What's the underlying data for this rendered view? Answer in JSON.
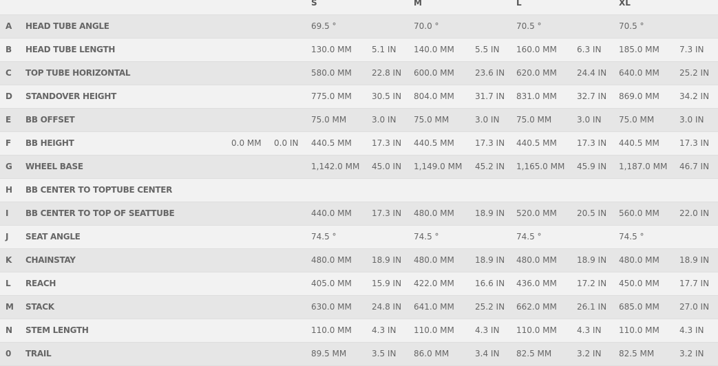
{
  "sizes": [
    "S",
    "M",
    "L",
    "XL"
  ],
  "rows": [
    {
      "letter": "A",
      "label": "HEAD TUBE ANGLE",
      "values": [
        [
          "69.5 °",
          ""
        ],
        [
          "70.0 °",
          ""
        ],
        [
          "70.5 °",
          ""
        ],
        [
          "70.5 °",
          ""
        ]
      ]
    },
    {
      "letter": "B",
      "label": "HEAD TUBE LENGTH",
      "values": [
        [
          "130.0 MM",
          "5.1 IN"
        ],
        [
          "140.0 MM",
          "5.5 IN"
        ],
        [
          "160.0 MM",
          "6.3 IN"
        ],
        [
          "185.0 MM",
          "7.3 IN"
        ]
      ]
    },
    {
      "letter": "C",
      "label": "TOP TUBE HORIZONTAL",
      "values": [
        [
          "580.0 MM",
          "22.8 IN"
        ],
        [
          "600.0 MM",
          "23.6 IN"
        ],
        [
          "620.0 MM",
          "24.4 IN"
        ],
        [
          "640.0 MM",
          "25.2 IN"
        ]
      ]
    },
    {
      "letter": "D",
      "label": "STANDOVER HEIGHT",
      "values": [
        [
          "775.0 MM",
          "30.5 IN"
        ],
        [
          "804.0 MM",
          "31.7 IN"
        ],
        [
          "831.0 MM",
          "32.7 IN"
        ],
        [
          "869.0 MM",
          "34.2 IN"
        ]
      ]
    },
    {
      "letter": "E",
      "label": "BB OFFSET",
      "values": [
        [
          "75.0 MM",
          "3.0 IN"
        ],
        [
          "75.0 MM",
          "3.0 IN"
        ],
        [
          "75.0 MM",
          "3.0 IN"
        ],
        [
          "75.0 MM",
          "3.0 IN"
        ]
      ]
    },
    {
      "letter": "F",
      "label": "BB HEIGHT",
      "extra": [
        "0.0 MM",
        "0.0 IN"
      ],
      "values": [
        [
          "440.5 MM",
          "17.3 IN"
        ],
        [
          "440.5 MM",
          "17.3 IN"
        ],
        [
          "440.5 MM",
          "17.3 IN"
        ],
        [
          "440.5 MM",
          "17.3 IN"
        ]
      ]
    },
    {
      "letter": "G",
      "label": "WHEEL BASE",
      "values": [
        [
          "1,142.0 MM",
          "45.0 IN"
        ],
        [
          "1,149.0 MM",
          "45.2 IN"
        ],
        [
          "1,165.0 MM",
          "45.9 IN"
        ],
        [
          "1,187.0 MM",
          "46.7 IN"
        ]
      ]
    },
    {
      "letter": "H",
      "label": "BB CENTER TO TOPTUBE CENTER",
      "values": [
        [
          "",
          ""
        ],
        [
          "",
          ""
        ],
        [
          "",
          ""
        ],
        [
          "",
          ""
        ]
      ]
    },
    {
      "letter": "I",
      "label": "BB CENTER TO TOP OF SEATTUBE",
      "values": [
        [
          "440.0 MM",
          "17.3 IN"
        ],
        [
          "480.0 MM",
          "18.9 IN"
        ],
        [
          "520.0 MM",
          "20.5 IN"
        ],
        [
          "560.0 MM",
          "22.0 IN"
        ]
      ]
    },
    {
      "letter": "J",
      "label": "SEAT ANGLE",
      "values": [
        [
          "74.5 °",
          ""
        ],
        [
          "74.5 °",
          ""
        ],
        [
          "74.5 °",
          ""
        ],
        [
          "74.5 °",
          ""
        ]
      ]
    },
    {
      "letter": "K",
      "label": "CHAINSTAY",
      "values": [
        [
          "480.0 MM",
          "18.9 IN"
        ],
        [
          "480.0 MM",
          "18.9 IN"
        ],
        [
          "480.0 MM",
          "18.9 IN"
        ],
        [
          "480.0 MM",
          "18.9 IN"
        ]
      ]
    },
    {
      "letter": "L",
      "label": "REACH",
      "values": [
        [
          "405.0 MM",
          "15.9 IN"
        ],
        [
          "422.0 MM",
          "16.6 IN"
        ],
        [
          "436.0 MM",
          "17.2 IN"
        ],
        [
          "450.0 MM",
          "17.7 IN"
        ]
      ]
    },
    {
      "letter": "M",
      "label": "STACK",
      "values": [
        [
          "630.0 MM",
          "24.8 IN"
        ],
        [
          "641.0 MM",
          "25.2 IN"
        ],
        [
          "662.0 MM",
          "26.1 IN"
        ],
        [
          "685.0 MM",
          "27.0 IN"
        ]
      ]
    },
    {
      "letter": "N",
      "label": "STEM LENGTH",
      "values": [
        [
          "110.0 MM",
          "4.3 IN"
        ],
        [
          "110.0 MM",
          "4.3 IN"
        ],
        [
          "110.0 MM",
          "4.3 IN"
        ],
        [
          "110.0 MM",
          "4.3 IN"
        ]
      ]
    },
    {
      "letter": "0",
      "label": "TRAIL",
      "values": [
        [
          "89.5 MM",
          "3.5 IN"
        ],
        [
          "86.0 MM",
          "3.4 IN"
        ],
        [
          "82.5 MM",
          "3.2 IN"
        ],
        [
          "82.5 MM",
          "3.2 IN"
        ]
      ]
    }
  ]
}
